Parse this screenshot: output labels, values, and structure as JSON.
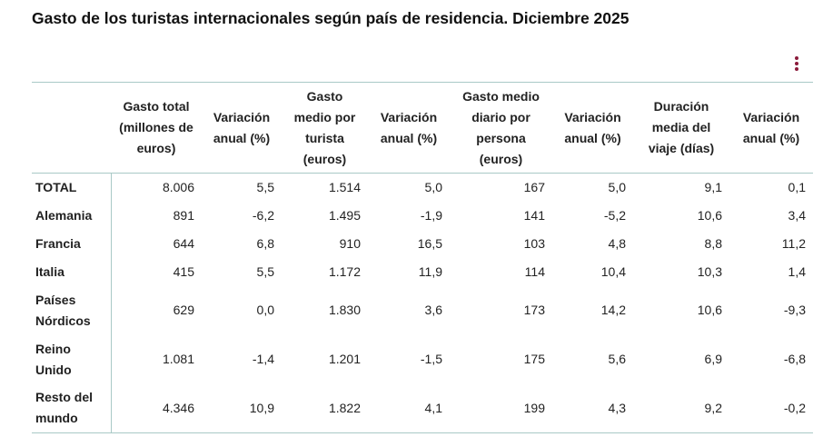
{
  "header": {
    "title": "Gasto de los turistas internacionales según país de residencia. Diciembre 2025"
  },
  "table": {
    "columns": [
      "",
      "Gasto total (millones de euros)",
      "Variación anual (%)",
      "Gasto medio por turista (euros)",
      "Variación anual (%)",
      "Gasto medio diario por persona (euros)",
      "Variación anual (%)",
      "Duración media del viaje (días)",
      "Variación anual (%)"
    ],
    "rows": [
      [
        "TOTAL",
        "8.006",
        "5,5",
        "1.514",
        "5,0",
        "167",
        "5,0",
        "9,1",
        "0,1"
      ],
      [
        "Alemania",
        "891",
        "-6,2",
        "1.495",
        "-1,9",
        "141",
        "-5,2",
        "10,6",
        "3,4"
      ],
      [
        "Francia",
        "644",
        "6,8",
        "910",
        "16,5",
        "103",
        "4,8",
        "8,8",
        "11,2"
      ],
      [
        "Italia",
        "415",
        "5,5",
        "1.172",
        "11,9",
        "114",
        "10,4",
        "10,3",
        "1,4"
      ],
      [
        "Países Nórdicos",
        "629",
        "0,0",
        "1.830",
        "3,6",
        "173",
        "14,2",
        "10,6",
        "-9,3"
      ],
      [
        "Reino Unido",
        "1.081",
        "-1,4",
        "1.201",
        "-1,5",
        "175",
        "5,6",
        "6,9",
        "-6,8"
      ],
      [
        "Resto del mundo",
        "4.346",
        "10,9",
        "1.822",
        "4,1",
        "199",
        "4,3",
        "9,2",
        "-0,2"
      ]
    ]
  }
}
